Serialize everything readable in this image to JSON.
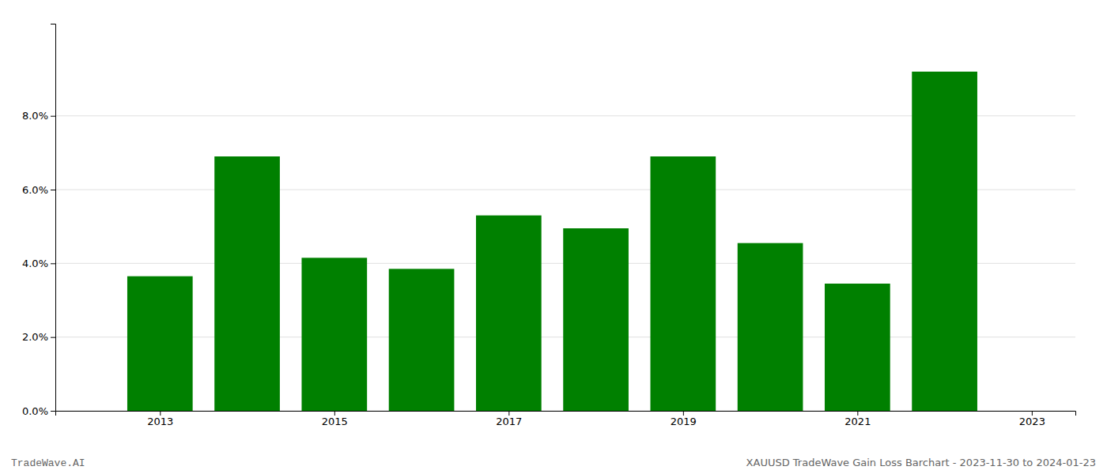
{
  "chart_data": {
    "type": "bar",
    "x": [
      2013,
      2014,
      2015,
      2016,
      2017,
      2018,
      2019,
      2020,
      2021,
      2022
    ],
    "values": [
      0.0365,
      0.069,
      0.0415,
      0.0385,
      0.053,
      0.0495,
      0.069,
      0.0455,
      0.0345,
      0.092
    ],
    "color": "#008000",
    "xlim": [
      2011.8,
      2023.5
    ],
    "xticks": [
      2013,
      2015,
      2017,
      2019,
      2021,
      2023
    ],
    "ylim": [
      0,
      0.105
    ],
    "yticks": [
      {
        "value": 0.0,
        "label": "0.0%"
      },
      {
        "value": 0.02,
        "label": "2.0%"
      },
      {
        "value": 0.04,
        "label": "4.0%"
      },
      {
        "value": 0.06,
        "label": "6.0%"
      },
      {
        "value": 0.08,
        "label": "8.0%"
      }
    ],
    "grid": true,
    "annotations": [
      "TradeWave.AI",
      "XAUUSD TradeWave Gain Loss Barchart - 2023-11-30 to 2024-01-23"
    ]
  }
}
